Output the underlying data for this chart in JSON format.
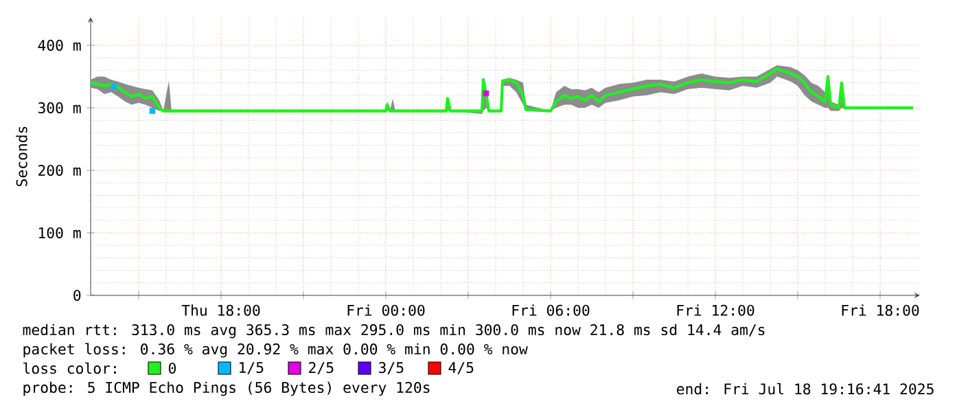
{
  "chart_data": {
    "type": "line",
    "ylabel": "Seconds",
    "legend_title": "loss color:",
    "legend": "bottom",
    "grid": true,
    "xlim": [
      "2025-07-17T13:15",
      "2025-07-18T19:27"
    ],
    "ylim": [
      0,
      445
    ],
    "xticks": [
      {
        "value": "2025-07-17T15:00",
        "label": null
      },
      {
        "value": "2025-07-17T18:00",
        "label": "Thu 18:00"
      },
      {
        "value": "2025-07-17T21:00",
        "label": null
      },
      {
        "value": "2025-07-18T00:00",
        "label": "Fri 00:00"
      },
      {
        "value": "2025-07-18T03:00",
        "label": null
      },
      {
        "value": "2025-07-18T06:00",
        "label": "Fri 06:00"
      },
      {
        "value": "2025-07-18T09:00",
        "label": null
      },
      {
        "value": "2025-07-18T12:00",
        "label": "Fri 12:00"
      },
      {
        "value": "2025-07-18T15:00",
        "label": null
      },
      {
        "value": "2025-07-18T18:00",
        "label": "Fri 18:00"
      }
    ],
    "yticks": [
      0,
      {
        "value": 100,
        "label": "100 m"
      },
      {
        "value": 200,
        "label": "200 m"
      },
      {
        "value": 300,
        "label": "300 m"
      },
      {
        "value": 400,
        "label": "400 m"
      }
    ],
    "annotations": [
      "median rtt:  313.0 ms avg  365.3 ms max  295.0 ms min  300.0 ms now  21.8 ms sd  14.4  am/s",
      "packet loss: 0.36 % avg  20.92 % max  0.00 % min  0.00 % now",
      "probe:       5 ICMP Echo Pings (56 Bytes) every 120s",
      "end: Fri Jul 18 19:16:41 2025"
    ],
    "series": [
      {
        "name": "0",
        "marker": "none",
        "color": "#20f020",
        "x": [
          "2025-07-17T13:15",
          "2025-07-17T13:30",
          "2025-07-17T13:45",
          "2025-07-17T14:00",
          "2025-07-17T14:15",
          "2025-07-17T14:30",
          "2025-07-17T14:45",
          "2025-07-17T15:00",
          "2025-07-17T15:15",
          "2025-07-17T15:30",
          "2025-07-17T15:45",
          "2025-07-17T15:54",
          "2025-07-17T16:00",
          "2025-07-17T16:06",
          "2025-07-17T16:12",
          "2025-07-18T00:00",
          "2025-07-18T00:03",
          "2025-07-18T00:09",
          "2025-07-18T00:15",
          "2025-07-18T00:21",
          "2025-07-18T02:12",
          "2025-07-18T02:15",
          "2025-07-18T02:21",
          "2025-07-18T03:30",
          "2025-07-18T03:33",
          "2025-07-18T03:39",
          "2025-07-18T03:45",
          "2025-07-18T04:12",
          "2025-07-18T04:15",
          "2025-07-18T04:30",
          "2025-07-18T04:45",
          "2025-07-18T05:00",
          "2025-07-18T05:06",
          "2025-07-18T06:00",
          "2025-07-18T06:12",
          "2025-07-18T06:30",
          "2025-07-18T06:45",
          "2025-07-18T07:00",
          "2025-07-18T07:15",
          "2025-07-18T07:30",
          "2025-07-18T07:45",
          "2025-07-18T08:00",
          "2025-07-18T08:30",
          "2025-07-18T09:00",
          "2025-07-18T09:30",
          "2025-07-18T10:00",
          "2025-07-18T10:30",
          "2025-07-18T11:00",
          "2025-07-18T11:30",
          "2025-07-18T12:00",
          "2025-07-18T12:30",
          "2025-07-18T13:00",
          "2025-07-18T13:30",
          "2025-07-18T14:00",
          "2025-07-18T14:15",
          "2025-07-18T14:45",
          "2025-07-18T15:00",
          "2025-07-18T15:15",
          "2025-07-18T15:30",
          "2025-07-18T15:45",
          "2025-07-18T16:00",
          "2025-07-18T16:06",
          "2025-07-18T16:12",
          "2025-07-18T16:30",
          "2025-07-18T16:36",
          "2025-07-18T16:42",
          "2025-07-18T19:12"
        ],
        "values": [
          340,
          338,
          335,
          338,
          333,
          325,
          318,
          322,
          315,
          318,
          300,
          295,
          295,
          295,
          295,
          295,
          305,
          295,
          295,
          295,
          295,
          315,
          295,
          295,
          345,
          323,
          295,
          295,
          343,
          345,
          340,
          320,
          297,
          295,
          310,
          320,
          315,
          318,
          312,
          320,
          310,
          320,
          325,
          330,
          335,
          338,
          332,
          340,
          345,
          342,
          340,
          345,
          342,
          355,
          362,
          355,
          350,
          340,
          325,
          318,
          310,
          350,
          305,
          300,
          340,
          300,
          300
        ],
        "lower": [
          332,
          330,
          322,
          325,
          318,
          310,
          305,
          308,
          305,
          300,
          295,
          295,
          295,
          295,
          295,
          295,
          295,
          295,
          295,
          295,
          295,
          295,
          295,
          290,
          295,
          300,
          295,
          295,
          335,
          335,
          325,
          305,
          295,
          295,
          300,
          305,
          305,
          300,
          300,
          305,
          300,
          308,
          312,
          318,
          320,
          325,
          322,
          330,
          332,
          330,
          328,
          335,
          332,
          340,
          350,
          342,
          335,
          320,
          310,
          305,
          300,
          300,
          295,
          295,
          300,
          300,
          300
        ],
        "upper": [
          345,
          350,
          350,
          345,
          342,
          338,
          335,
          332,
          330,
          328,
          312,
          295,
          320,
          343,
          295,
          295,
          310,
          295,
          315,
          295,
          295,
          318,
          295,
          295,
          347,
          330,
          295,
          295,
          345,
          348,
          345,
          340,
          305,
          295,
          325,
          335,
          330,
          330,
          328,
          332,
          325,
          332,
          338,
          340,
          345,
          345,
          342,
          350,
          355,
          350,
          348,
          350,
          350,
          362,
          368,
          365,
          360,
          352,
          340,
          335,
          325,
          352,
          310,
          305,
          342,
          300,
          300
        ]
      },
      {
        "name": "1/5",
        "type": "scatter",
        "marker": "square",
        "color": "#00b8ff",
        "x": [
          "2025-07-17T14:06",
          "2025-07-17T15:30"
        ],
        "values": [
          334,
          295
        ]
      },
      {
        "name": "2/5",
        "type": "scatter",
        "marker": "square",
        "color": "#e000e0",
        "x": [
          "2025-07-18T03:39"
        ],
        "values": [
          323
        ]
      },
      {
        "name": "3/5",
        "color": "#6000ff"
      },
      {
        "name": "4/5",
        "color": "#ff0000"
      }
    ]
  }
}
